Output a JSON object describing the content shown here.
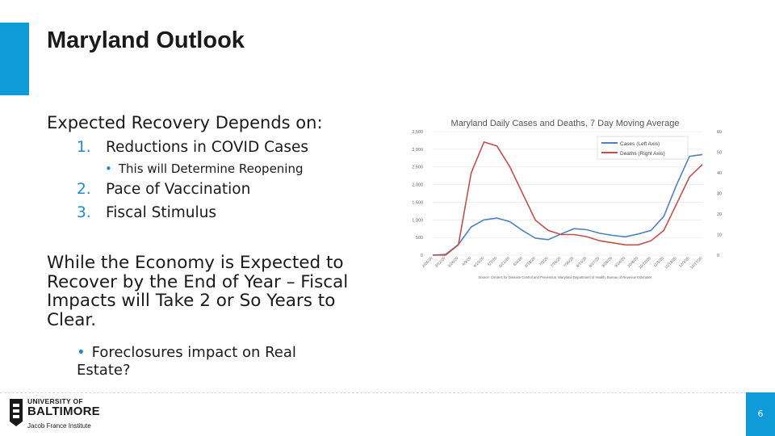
{
  "slide": {
    "title": "Maryland Outlook",
    "intro": "Expected Recovery Depends on:",
    "items": [
      {
        "num": "1.",
        "text": "Reductions in COVID Cases"
      },
      {
        "num": "2.",
        "text": "Pace of Vaccination"
      },
      {
        "num": "3.",
        "text": "Fiscal Stimulus"
      }
    ],
    "sub_bullet": "This will Determine Reopening",
    "bullet_glyph": "•",
    "paragraph": "While the Economy is Expected to Recover by the End of Year – Fiscal Impacts will Take 2 or So Years to Clear.",
    "sub_bullet2": "Foreclosures impact on Real Estate?",
    "page_number": "6",
    "accent_color": "#0f9bd7"
  },
  "logo": {
    "line1": "UNIVERSITY OF",
    "line2": "BALTIMORE",
    "line3": "Jacob France Institute"
  },
  "chart_data": {
    "type": "line",
    "title": "Maryland Daily Cases and Deaths, 7 Day Moving Average",
    "source": "Source: Centers for Disease Control and Prevention; Maryland Department of Health; Bureau of Revenue Estimates",
    "x": [
      "2/26/20",
      "3/12/20",
      "3/26/20",
      "4/9/20",
      "4/23/20",
      "5/7/20",
      "5/21/20",
      "6/4/20",
      "6/18/20",
      "7/2/20",
      "7/16/20",
      "7/30/20",
      "8/13/20",
      "8/27/20",
      "9/10/20",
      "9/24/20",
      "10/8/20",
      "10/22/20",
      "11/5/20",
      "11/19/20",
      "12/3/20",
      "12/17/20"
    ],
    "ylim_left": [
      0,
      3500
    ],
    "yticks_left": [
      "0",
      "500",
      "1,000",
      "1,500",
      "2,000",
      "2,500",
      "3,000",
      "3,500"
    ],
    "ylim_right": [
      0,
      60
    ],
    "yticks_right": [
      "0",
      "10",
      "20",
      "30",
      "40",
      "50",
      "60"
    ],
    "legend": "top-right",
    "series": [
      {
        "name": "Cases (Left Axis)",
        "axis": "left",
        "color": "#4f81bd",
        "values": [
          0,
          20,
          300,
          800,
          1000,
          1050,
          950,
          700,
          480,
          440,
          600,
          750,
          720,
          620,
          560,
          520,
          600,
          700,
          1100,
          2000,
          2800,
          2850
        ]
      },
      {
        "name": "Deaths (Right Axis)",
        "axis": "right",
        "color": "#c0504d",
        "values": [
          0,
          0,
          5,
          40,
          55,
          53,
          43,
          30,
          17,
          12,
          10,
          10,
          9,
          7,
          6,
          5,
          5,
          7,
          12,
          25,
          38,
          44
        ]
      }
    ]
  }
}
